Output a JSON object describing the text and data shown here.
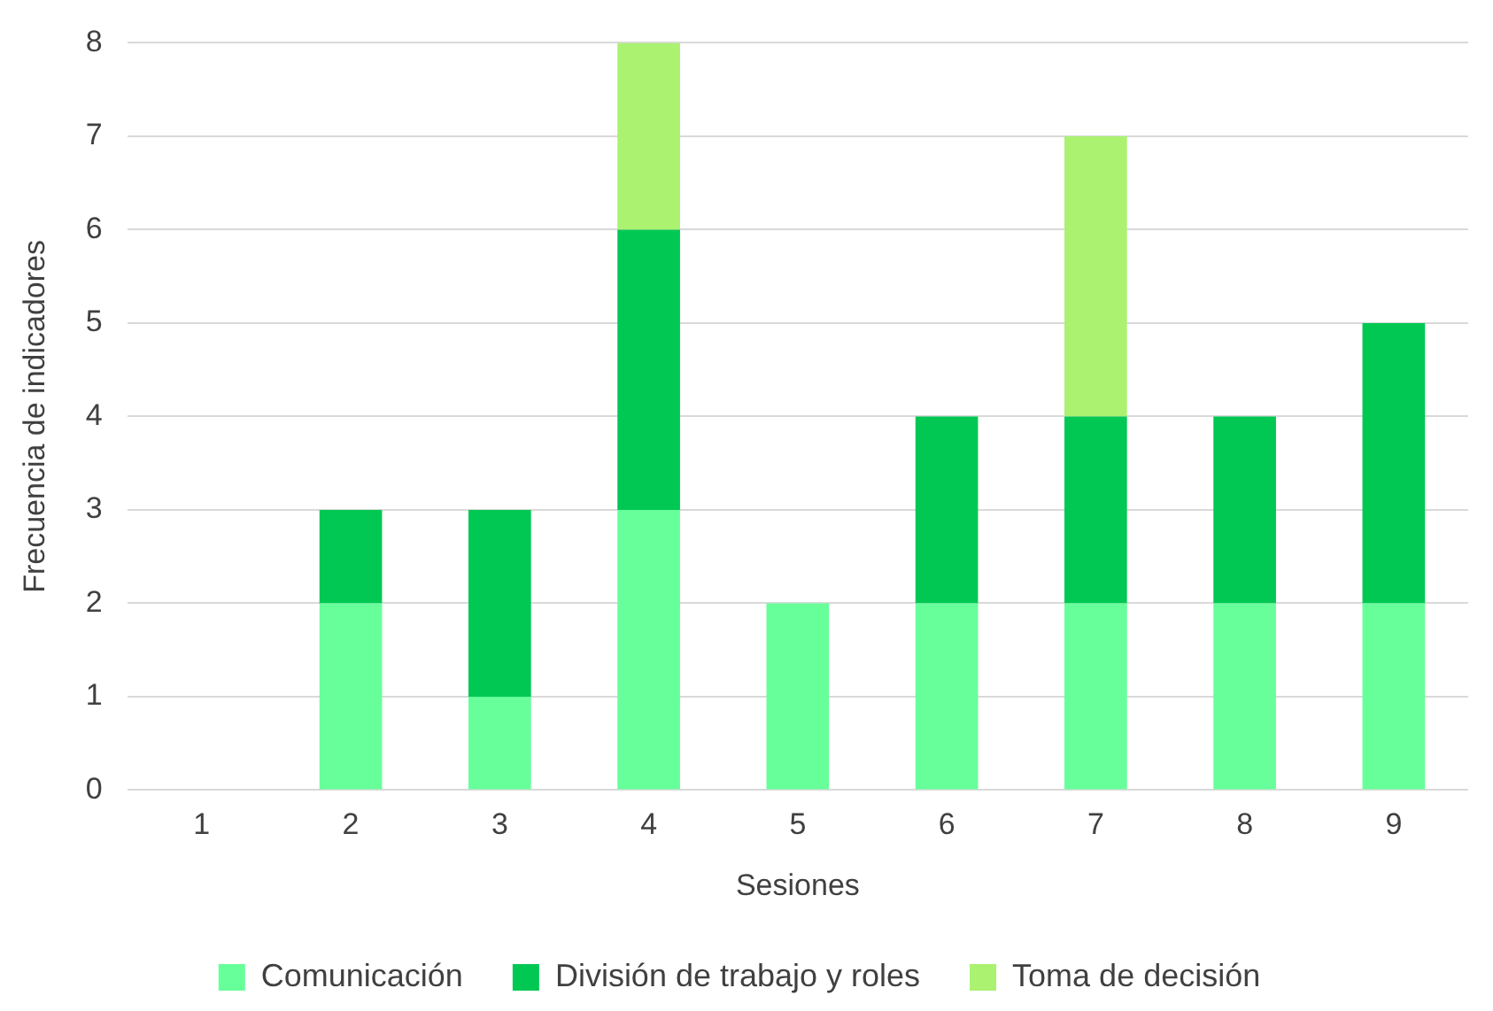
{
  "chart_data": {
    "type": "bar",
    "stacked": true,
    "xlabel": "Sesiones",
    "ylabel": "Frecuencia de indicadores",
    "categories": [
      "1",
      "2",
      "3",
      "4",
      "5",
      "6",
      "7",
      "8",
      "9"
    ],
    "series": [
      {
        "name": "Comunicación",
        "color": "#66ff99",
        "values": [
          0,
          2,
          1,
          3,
          2,
          2,
          2,
          2,
          2
        ]
      },
      {
        "name": "División de trabajo y roles",
        "color": "#00c853",
        "values": [
          0,
          1,
          2,
          3,
          0,
          2,
          2,
          2,
          3
        ]
      },
      {
        "name": "Toma de decisión",
        "color": "#aaf270",
        "values": [
          0,
          0,
          0,
          2,
          0,
          0,
          3,
          0,
          0
        ]
      }
    ],
    "ylim": [
      0,
      8
    ],
    "yticks": [
      0,
      1,
      2,
      3,
      4,
      5,
      6,
      7,
      8
    ],
    "grid": "y",
    "legend": "bottom"
  }
}
